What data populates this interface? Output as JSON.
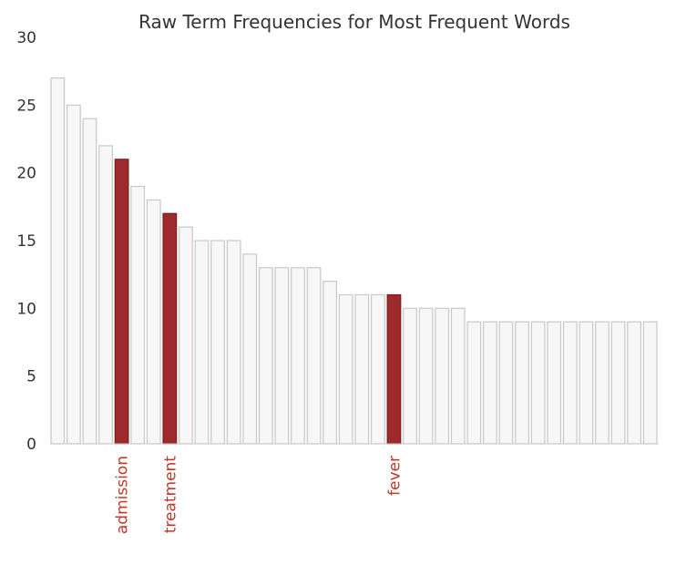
{
  "chart_data": {
    "type": "bar",
    "title": "Raw Term Frequencies for Most Frequent Words",
    "xlabel": "",
    "ylabel": "",
    "ylim": [
      0,
      30
    ],
    "yticks": [
      0,
      5,
      10,
      15,
      20,
      25,
      30
    ],
    "grid": false,
    "categories": [
      "",
      "",
      "",
      "",
      "admission",
      "",
      "",
      "treatment",
      "",
      "",
      "",
      "",
      "",
      "",
      "",
      "",
      "",
      "",
      "",
      "",
      "",
      "fever",
      "",
      "",
      "",
      "",
      "",
      "",
      "",
      "",
      "",
      "",
      "",
      "",
      "",
      "",
      "",
      ""
    ],
    "values": [
      27,
      25,
      24,
      22,
      21,
      19,
      18,
      17,
      16,
      15,
      15,
      15,
      14,
      13,
      13,
      13,
      13,
      12,
      11,
      11,
      11,
      11,
      10,
      10,
      10,
      10,
      9,
      9,
      9,
      9,
      9,
      9,
      9,
      9,
      9,
      9,
      9,
      9
    ],
    "highlighted": [
      "admission",
      "treatment",
      "fever"
    ],
    "colors": {
      "default_fill": "#f7f7f7",
      "default_stroke": "#c8c8c8",
      "highlight_fill": "#9e2a2b",
      "highlight_stroke": "#7a1f20",
      "highlight_label": "#c0392b",
      "axis": "#c8c8c8",
      "text": "#333333"
    }
  }
}
